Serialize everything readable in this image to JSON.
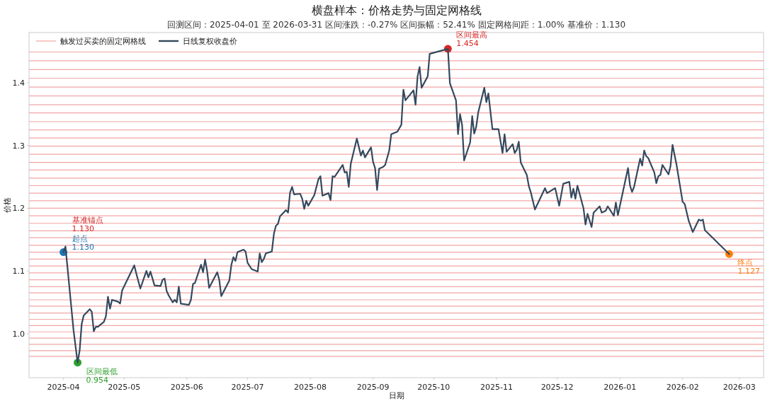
{
  "chart_data": {
    "type": "line",
    "title": "横盘样本：价格走势与固定网格线",
    "subtitle": "回测区间：2025-04-01 至 2026-03-31    区间涨跌：-0.27%    区间振幅：52.41%    固定网格间距：1.00%    基准价：1.130",
    "xlabel": "日期",
    "ylabel": "价格",
    "legend": "top left",
    "xlim": [
      "2025-03-15",
      "2026-03-13"
    ],
    "xticks": [
      {
        "value": "2025-04-01",
        "label": "2025-04"
      },
      {
        "value": "2025-05-01",
        "label": "2025-05"
      },
      {
        "value": "2025-06-01",
        "label": "2025-06"
      },
      {
        "value": "2025-07-01",
        "label": "2025-07"
      },
      {
        "value": "2025-08-01",
        "label": "2025-08"
      },
      {
        "value": "2025-09-01",
        "label": "2025-09"
      },
      {
        "value": "2025-10-01",
        "label": "2025-10"
      },
      {
        "value": "2025-11-01",
        "label": "2025-11"
      },
      {
        "value": "2025-12-01",
        "label": "2025-12"
      },
      {
        "value": "2026-01-01",
        "label": "2026-01"
      },
      {
        "value": "2026-02-01",
        "label": "2026-02"
      },
      {
        "value": "2026-03-01",
        "label": "2026-03"
      }
    ],
    "ylim": [
      0.93,
      1.48
    ],
    "yticks": [
      {
        "value": 1.0,
        "label": "1.0"
      },
      {
        "value": 1.1,
        "label": "1.1"
      },
      {
        "value": 1.2,
        "label": "1.2"
      },
      {
        "value": 1.3,
        "label": "1.3"
      },
      {
        "value": 1.4,
        "label": "1.4"
      }
    ],
    "series": [
      {
        "name": "日线复权收盘价",
        "type": "line",
        "color": "#34495e",
        "x": [
          "2025-04-01",
          "2025-04-02",
          "2025-04-06",
          "2025-04-08",
          "2025-04-09",
          "2025-04-10",
          "2025-04-11",
          "2025-04-14",
          "2025-04-15",
          "2025-04-16",
          "2025-04-17",
          "2025-04-18",
          "2025-04-21",
          "2025-04-22",
          "2025-04-23",
          "2025-04-24",
          "2025-04-25",
          "2025-04-28",
          "2025-04-29",
          "2025-04-30",
          "2025-05-06",
          "2025-05-07",
          "2025-05-09",
          "2025-05-12",
          "2025-05-13",
          "2025-05-14",
          "2025-05-16",
          "2025-05-19",
          "2025-05-20",
          "2025-05-21",
          "2025-05-22",
          "2025-05-23",
          "2025-05-25",
          "2025-05-26",
          "2025-05-27",
          "2025-05-28",
          "2025-05-29",
          "2025-06-02",
          "2025-06-03",
          "2025-06-04",
          "2025-06-05",
          "2025-06-08",
          "2025-06-09",
          "2025-06-10",
          "2025-06-11",
          "2025-06-12",
          "2025-06-16",
          "2025-06-17",
          "2025-06-18",
          "2025-06-22",
          "2025-06-23",
          "2025-06-24",
          "2025-06-25",
          "2025-06-26",
          "2025-06-29",
          "2025-06-30",
          "2025-07-01",
          "2025-07-03",
          "2025-07-06",
          "2025-07-07",
          "2025-07-08",
          "2025-07-09",
          "2025-07-10",
          "2025-07-13",
          "2025-07-14",
          "2025-07-15",
          "2025-07-16",
          "2025-07-17",
          "2025-07-20",
          "2025-07-21",
          "2025-07-22",
          "2025-07-23",
          "2025-07-24",
          "2025-07-27",
          "2025-07-28",
          "2025-07-29",
          "2025-07-30",
          "2025-07-31",
          "2025-08-03",
          "2025-08-05",
          "2025-08-06",
          "2025-08-07",
          "2025-08-10",
          "2025-08-11",
          "2025-08-12",
          "2025-08-13",
          "2025-08-17",
          "2025-08-18",
          "2025-08-19",
          "2025-08-20",
          "2025-08-21",
          "2025-08-24",
          "2025-08-26",
          "2025-08-27",
          "2025-08-28",
          "2025-08-31",
          "2025-09-01",
          "2025-09-02",
          "2025-09-03",
          "2025-09-04",
          "2025-09-06",
          "2025-09-07",
          "2025-09-09",
          "2025-09-10",
          "2025-09-13",
          "2025-09-15",
          "2025-09-16",
          "2025-09-17",
          "2025-09-21",
          "2025-09-22",
          "2025-09-23",
          "2025-09-24",
          "2025-09-25",
          "2025-09-28",
          "2025-09-29",
          "2025-10-08",
          "2025-10-09",
          "2025-10-12",
          "2025-10-13",
          "2025-10-14",
          "2025-10-15",
          "2025-10-16",
          "2025-10-19",
          "2025-10-20",
          "2025-10-21",
          "2025-10-22",
          "2025-10-23",
          "2025-10-26",
          "2025-10-27",
          "2025-10-28",
          "2025-10-30",
          "2025-11-02",
          "2025-11-04",
          "2025-11-05",
          "2025-11-06",
          "2025-11-09",
          "2025-11-10",
          "2025-11-11",
          "2025-11-12",
          "2025-11-13",
          "2025-11-16",
          "2025-11-17",
          "2025-11-18",
          "2025-11-20",
          "2025-11-25",
          "2025-11-26",
          "2025-11-30",
          "2025-12-02",
          "2025-12-04",
          "2025-12-07",
          "2025-12-08",
          "2025-12-09",
          "2025-12-10",
          "2025-12-11",
          "2025-12-14",
          "2025-12-15",
          "2025-12-16",
          "2025-12-18",
          "2025-12-19",
          "2025-12-22",
          "2025-12-23",
          "2025-12-25",
          "2025-12-26",
          "2025-12-29",
          "2025-12-30",
          "2025-12-31",
          "2026-01-05",
          "2026-01-06",
          "2026-01-07",
          "2026-01-08",
          "2026-01-11",
          "2026-01-12",
          "2026-01-13",
          "2026-01-14",
          "2026-01-15",
          "2026-01-18",
          "2026-01-19",
          "2026-01-20",
          "2026-01-21",
          "2026-01-22",
          "2026-01-25",
          "2026-01-26",
          "2026-01-27",
          "2026-01-29",
          "2026-02-01",
          "2026-02-02",
          "2026-02-04",
          "2026-02-06",
          "2026-02-09",
          "2026-02-10",
          "2026-02-11",
          "2026-02-12",
          "2026-02-24"
        ],
        "values": [
          1.13,
          1.139,
          1.005,
          0.954,
          0.973,
          1.015,
          1.029,
          1.039,
          1.035,
          1.004,
          1.011,
          1.011,
          1.019,
          1.028,
          1.059,
          1.04,
          1.054,
          1.051,
          1.048,
          1.069,
          1.109,
          1.096,
          1.072,
          1.1,
          1.09,
          1.099,
          1.077,
          1.076,
          1.086,
          1.088,
          1.068,
          1.061,
          1.05,
          1.054,
          1.05,
          1.075,
          1.048,
          1.046,
          1.054,
          1.079,
          1.081,
          1.11,
          1.098,
          1.118,
          1.1,
          1.073,
          1.098,
          1.086,
          1.06,
          1.085,
          1.11,
          1.122,
          1.116,
          1.13,
          1.134,
          1.131,
          1.113,
          1.103,
          1.099,
          1.128,
          1.114,
          1.119,
          1.128,
          1.131,
          1.159,
          1.172,
          1.175,
          1.187,
          1.197,
          1.193,
          1.225,
          1.234,
          1.222,
          1.223,
          1.215,
          1.199,
          1.212,
          1.204,
          1.221,
          1.246,
          1.251,
          1.22,
          1.224,
          1.213,
          1.251,
          1.25,
          1.269,
          1.257,
          1.258,
          1.234,
          1.271,
          1.311,
          1.284,
          1.292,
          1.281,
          1.297,
          1.274,
          1.264,
          1.229,
          1.263,
          1.266,
          1.269,
          1.292,
          1.318,
          1.322,
          1.333,
          1.389,
          1.372,
          1.388,
          1.365,
          1.41,
          1.425,
          1.392,
          1.41,
          1.446,
          1.454,
          1.399,
          1.372,
          1.318,
          1.35,
          1.333,
          1.276,
          1.305,
          1.347,
          1.319,
          1.33,
          1.353,
          1.392,
          1.369,
          1.383,
          1.326,
          1.326,
          1.288,
          1.318,
          1.29,
          1.302,
          1.288,
          1.293,
          1.306,
          1.273,
          1.253,
          1.235,
          1.225,
          1.198,
          1.232,
          1.224,
          1.232,
          1.204,
          1.239,
          1.242,
          1.217,
          1.231,
          1.215,
          1.236,
          1.2,
          1.174,
          1.191,
          1.17,
          1.193,
          1.203,
          1.193,
          1.196,
          1.203,
          1.188,
          1.209,
          1.189,
          1.264,
          1.236,
          1.226,
          1.234,
          1.279,
          1.268,
          1.292,
          1.283,
          1.28,
          1.257,
          1.24,
          1.251,
          1.253,
          1.269,
          1.254,
          1.267,
          1.301,
          1.269,
          1.21,
          1.207,
          1.18,
          1.162,
          1.182,
          1.18,
          1.182,
          1.165,
          1.127
        ]
      },
      {
        "type": "scatter",
        "x": [
          "2025-04-01",
          "2025-04-08",
          "2025-10-08",
          "2026-02-24"
        ],
        "values": [
          1.13,
          0.954,
          1.454,
          1.127
        ],
        "colors": [
          "#1f77b4",
          "#2ca02c",
          "#d62728",
          "#ff7f0e"
        ],
        "value_labels": [
          "起点\n1.130",
          "区间最低\n0.954",
          "区间最高\n1.454",
          "终点\n1.127"
        ]
      }
    ],
    "annotations": [
      {
        "text": "基准锚点\n1.130",
        "x": "2025-04-01",
        "y": 1.13
      }
    ],
    "ref_lines": [
      {
        "axis": "y",
        "value": 0.964,
        "color": "#f2a5a5",
        "label": "触发过买卖的固定网格线"
      },
      {
        "axis": "y",
        "value": 0.973,
        "color": "#f2a5a5"
      },
      {
        "axis": "y",
        "value": 0.983,
        "color": "#f2a5a5"
      },
      {
        "axis": "y",
        "value": 0.993,
        "color": "#f2a5a5"
      },
      {
        "axis": "y",
        "value": 1.003,
        "color": "#f2a5a5"
      },
      {
        "axis": "y",
        "value": 1.013,
        "color": "#f2a5a5"
      },
      {
        "axis": "y",
        "value": 1.023,
        "color": "#f2a5a5"
      },
      {
        "axis": "y",
        "value": 1.033,
        "color": "#f2a5a5"
      },
      {
        "axis": "y",
        "value": 1.044,
        "color": "#f2a5a5"
      },
      {
        "axis": "y",
        "value": 1.054,
        "color": "#f2a5a5"
      },
      {
        "axis": "y",
        "value": 1.065,
        "color": "#f2a5a5"
      },
      {
        "axis": "y",
        "value": 1.075,
        "color": "#f2a5a5"
      },
      {
        "axis": "y",
        "value": 1.086,
        "color": "#f2a5a5"
      },
      {
        "axis": "y",
        "value": 1.097,
        "color": "#f2a5a5"
      },
      {
        "axis": "y",
        "value": 1.108,
        "color": "#f2a5a5"
      },
      {
        "axis": "y",
        "value": 1.119,
        "color": "#f2a5a5"
      },
      {
        "axis": "y",
        "value": 1.13,
        "color": "#f2a5a5"
      },
      {
        "axis": "y",
        "value": 1.141,
        "color": "#f2a5a5"
      },
      {
        "axis": "y",
        "value": 1.153,
        "color": "#f2a5a5"
      },
      {
        "axis": "y",
        "value": 1.164,
        "color": "#f2a5a5"
      },
      {
        "axis": "y",
        "value": 1.176,
        "color": "#f2a5a5"
      },
      {
        "axis": "y",
        "value": 1.188,
        "color": "#f2a5a5"
      },
      {
        "axis": "y",
        "value": 1.2,
        "color": "#f2a5a5"
      },
      {
        "axis": "y",
        "value": 1.212,
        "color": "#f2a5a5"
      },
      {
        "axis": "y",
        "value": 1.224,
        "color": "#f2a5a5"
      },
      {
        "axis": "y",
        "value": 1.236,
        "color": "#f2a5a5"
      },
      {
        "axis": "y",
        "value": 1.248,
        "color": "#f2a5a5"
      },
      {
        "axis": "y",
        "value": 1.261,
        "color": "#f2a5a5"
      },
      {
        "axis": "y",
        "value": 1.273,
        "color": "#f2a5a5"
      },
      {
        "axis": "y",
        "value": 1.286,
        "color": "#f2a5a5"
      },
      {
        "axis": "y",
        "value": 1.299,
        "color": "#f2a5a5"
      },
      {
        "axis": "y",
        "value": 1.312,
        "color": "#f2a5a5"
      },
      {
        "axis": "y",
        "value": 1.325,
        "color": "#f2a5a5"
      },
      {
        "axis": "y",
        "value": 1.338,
        "color": "#f2a5a5"
      },
      {
        "axis": "y",
        "value": 1.352,
        "color": "#f2a5a5"
      },
      {
        "axis": "y",
        "value": 1.365,
        "color": "#f2a5a5"
      },
      {
        "axis": "y",
        "value": 1.379,
        "color": "#f2a5a5"
      },
      {
        "axis": "y",
        "value": 1.393,
        "color": "#f2a5a5"
      },
      {
        "axis": "y",
        "value": 1.407,
        "color": "#f2a5a5"
      },
      {
        "axis": "y",
        "value": 1.421,
        "color": "#f2a5a5"
      },
      {
        "axis": "y",
        "value": 1.435,
        "color": "#f2a5a5"
      },
      {
        "axis": "y",
        "value": 1.449,
        "color": "#f2a5a5"
      }
    ]
  }
}
